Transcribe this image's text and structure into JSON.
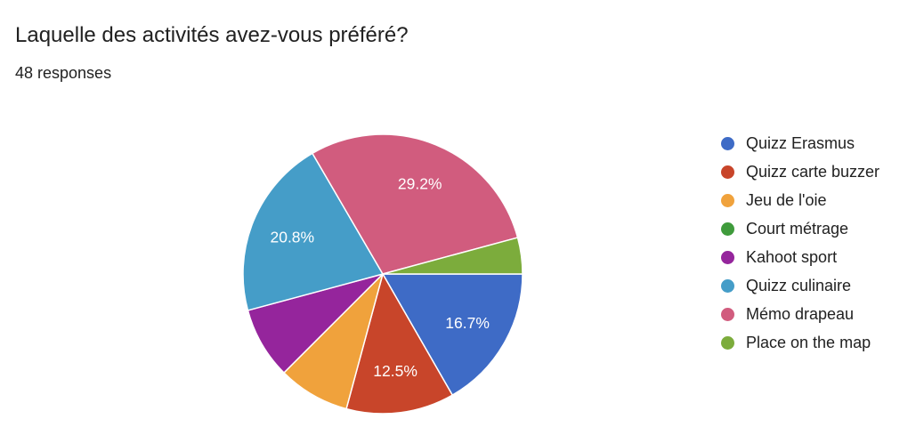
{
  "header": {
    "title": "Laquelle des activités avez-vous préféré?",
    "responses_label": "48 responses"
  },
  "chart_data": {
    "type": "pie",
    "title": "Laquelle des activités avez-vous préféré?",
    "subtitle": "48 responses",
    "total_responses": 48,
    "legend_position": "right",
    "start_angle_deg": 0,
    "direction": "clockwise",
    "slice_border_color": "#ffffff",
    "label_color": "#ffffff",
    "slices": [
      {
        "label": "Quizz Erasmus",
        "count": 8,
        "pct": 16.7,
        "pct_label": "16.7%",
        "color": "#3E6BC6"
      },
      {
        "label": "Quizz carte buzzer",
        "count": 6,
        "pct": 12.5,
        "pct_label": "12.5%",
        "color": "#C8452A"
      },
      {
        "label": "Jeu de l'oie",
        "count": 4,
        "pct": 8.3,
        "pct_label": "",
        "color": "#F0A23C"
      },
      {
        "label": "Court métrage",
        "count": 0,
        "pct": 0.0,
        "pct_label": "",
        "color": "#3F9B3C"
      },
      {
        "label": "Kahoot sport",
        "count": 4,
        "pct": 8.3,
        "pct_label": "",
        "color": "#95259C"
      },
      {
        "label": "Quizz culinaire",
        "count": 10,
        "pct": 20.8,
        "pct_label": "20.8%",
        "color": "#459DC8"
      },
      {
        "label": "Mémo drapeau",
        "count": 14,
        "pct": 29.2,
        "pct_label": "29.2%",
        "color": "#D15C7E"
      },
      {
        "label": "Place on the map",
        "count": 2,
        "pct": 4.2,
        "pct_label": "",
        "color": "#7CAC3C"
      }
    ]
  }
}
